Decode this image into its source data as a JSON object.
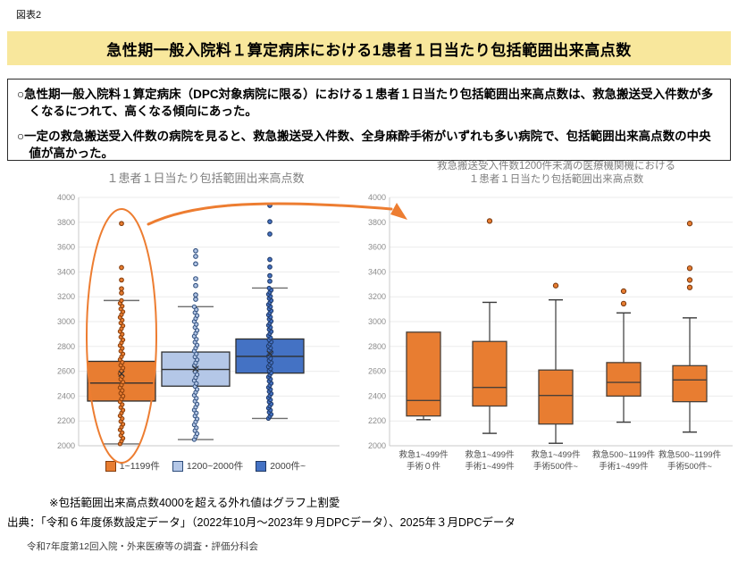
{
  "page": {
    "figure_label": "図表2",
    "title": "急性期一般入院料１算定病床における1患者１日当たり包括範囲出来高点数",
    "bullets": [
      "○急性期一般入院料１算定病床（DPC対象病院に限る）における１患者１日当たり包括範囲出来高点数は、救急搬送受入件数が多くなるにつれて、高くなる傾向にあった。",
      "○一定の救急搬送受入件数の病院を見ると、救急搬送受入件数、全身麻酔手術がいずれも多い病院で、包括範囲出来高点数の中央値が高かった。"
    ],
    "note": "※包括範囲出来高点数4000を超える外れ値はグラフ上割愛",
    "source": "出典：「令和６年度係数設定データ」（2022年10月～2023年９月DPCデータ）、2025年３月DPCデータ",
    "footer": "令和7年度第12回入院・外来医療等の調査・評価分科会"
  },
  "colors": {
    "banner_yellow": "#F8E79C",
    "orange": "#E87D31",
    "light_blue": "#B4C7E7",
    "dark_blue": "#4472C4",
    "annotation_orange": "#ED7D31",
    "grid": "#EBEBEB",
    "axis_text": "#8c8c8c",
    "title_gray": "#7f7f7f"
  },
  "chart_data": [
    {
      "type": "boxplot",
      "title": "１患者１日当たり包括範囲出来高点数",
      "ylim": [
        2000,
        4000
      ],
      "ytick_step": 200,
      "grid": true,
      "legend_position": "bottom",
      "series": [
        {
          "name": "1~1199件",
          "color": "#E87D31",
          "stroke": "#843C0C",
          "low": 2015,
          "q1": 2360,
          "median": 2505,
          "q3": 2680,
          "high": 3170,
          "mean": 2580,
          "outliers": [
            3230,
            3265,
            3335,
            3435,
            3790
          ],
          "dot_strip": {
            "min": 2015,
            "max": 3170,
            "count": 52
          }
        },
        {
          "name": "1200~2000件",
          "color": "#B4C7E7",
          "stroke": "#2E4D7B",
          "low": 2050,
          "q1": 2480,
          "median": 2615,
          "q3": 2755,
          "high": 3120,
          "mean": 2620,
          "outliers": [
            3180,
            3215,
            3290,
            3345,
            3465,
            3525,
            3570
          ],
          "dot_strip": {
            "min": 2050,
            "max": 3120,
            "count": 46
          }
        },
        {
          "name": "2000件~",
          "color": "#4472C4",
          "stroke": "#1F3864",
          "low": 2220,
          "q1": 2585,
          "median": 2720,
          "q3": 2860,
          "high": 3270,
          "mean": 2740,
          "outliers": [
            3325,
            3370,
            3440,
            3500,
            3705,
            3805,
            3935
          ],
          "dot_strip": {
            "min": 2220,
            "max": 3270,
            "count": 64
          }
        }
      ],
      "annotation": "orange ellipse around 1~1199件 box with arrow pointing to right chart"
    },
    {
      "type": "boxplot",
      "title_lines": [
        "救急搬送受入件数1200件未満の医療機関機における",
        "１患者１日当たり包括範囲出来高点数"
      ],
      "ylim": [
        2000,
        4000
      ],
      "ytick_step": 200,
      "grid": true,
      "box_color": "#E87D31",
      "box_stroke": "#4a4038",
      "series": [
        {
          "name_lines": [
            "救急1~499件",
            "手術０件"
          ],
          "low": 2210,
          "q1": 2240,
          "median": 2365,
          "q3": 2915,
          "high": null,
          "outliers": []
        },
        {
          "name_lines": [
            "救急1~499件",
            "手術1~499件"
          ],
          "low": 2100,
          "q1": 2320,
          "median": 2470,
          "q3": 2840,
          "high": 3155,
          "outliers": [
            3810
          ]
        },
        {
          "name_lines": [
            "救急1~499件",
            "手術500件~"
          ],
          "low": 2020,
          "q1": 2175,
          "median": 2405,
          "q3": 2610,
          "high": 3175,
          "outliers": [
            3290
          ]
        },
        {
          "name_lines": [
            "救急500~1199件",
            "手術1~499件"
          ],
          "low": 2190,
          "q1": 2400,
          "median": 2510,
          "q3": 2670,
          "high": 3070,
          "outliers": [
            3145,
            3245
          ]
        },
        {
          "name_lines": [
            "救急500~1199件",
            "手術500件~"
          ],
          "low": 2110,
          "q1": 2355,
          "median": 2530,
          "q3": 2645,
          "high": 3030,
          "outliers": [
            3275,
            3335,
            3430,
            3790
          ]
        }
      ]
    }
  ]
}
